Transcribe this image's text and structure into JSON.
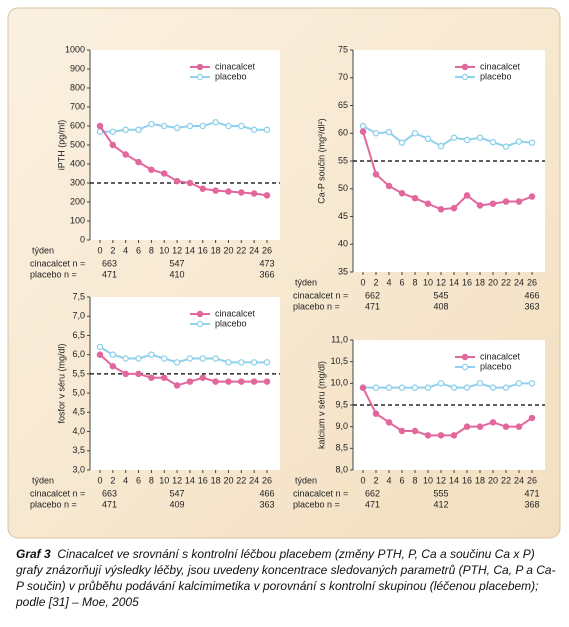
{
  "chart_data": [
    {
      "type": "line",
      "y_label": "iPTH (pg/ml)",
      "x_label": "týden",
      "categories": [
        0,
        2,
        4,
        6,
        8,
        10,
        12,
        14,
        16,
        18,
        20,
        22,
        24,
        26
      ],
      "series": [
        {
          "name": "cinacalcet",
          "color": "#e2679d",
          "values": [
            600,
            500,
            450,
            410,
            370,
            350,
            310,
            300,
            270,
            260,
            255,
            250,
            245,
            235
          ]
        },
        {
          "name": "placebo",
          "color": "#8fd0ea",
          "values": [
            570,
            570,
            580,
            580,
            610,
            600,
            590,
            600,
            600,
            620,
            600,
            600,
            580,
            580
          ]
        }
      ],
      "ylim": [
        0,
        1000
      ],
      "yticks": [
        0,
        100,
        200,
        300,
        400,
        500,
        600,
        700,
        800,
        900,
        1000
      ],
      "reference_line": 300,
      "legend": "top right",
      "n_table": [
        {
          "label": "cinacalcet n =",
          "counts": [
            663,
            547,
            473
          ]
        },
        {
          "label": "placebo n =",
          "counts": [
            471,
            410,
            366
          ]
        }
      ]
    },
    {
      "type": "line",
      "y_label": "Ca-P součin (mg²/dl²)",
      "x_label": "týden",
      "categories": [
        0,
        2,
        4,
        6,
        8,
        10,
        12,
        14,
        16,
        18,
        20,
        22,
        24,
        26
      ],
      "series": [
        {
          "name": "cinacalcet",
          "color": "#e2679d",
          "values": [
            60.3,
            52.6,
            50.5,
            49.2,
            48.3,
            47.3,
            46.3,
            46.5,
            48.8,
            47.0,
            47.3,
            47.7,
            47.7,
            48.6
          ]
        },
        {
          "name": "placebo",
          "color": "#8fd0ea",
          "values": [
            61.3,
            60.0,
            60.2,
            58.3,
            60.0,
            59.0,
            57.7,
            59.2,
            58.8,
            59.2,
            58.4,
            57.6,
            58.5,
            58.3
          ]
        }
      ],
      "ylim": [
        35,
        75
      ],
      "yticks": [
        35,
        40,
        45,
        50,
        55,
        60,
        65,
        70,
        75
      ],
      "reference_line": 55,
      "legend": "top right",
      "n_table": [
        {
          "label": "cinacalcet n =",
          "counts": [
            662,
            545,
            466
          ]
        },
        {
          "label": "placebo n =",
          "counts": [
            471,
            408,
            363
          ]
        }
      ]
    },
    {
      "type": "line",
      "y_label": "fosfor v séru (mg/dl)",
      "x_label": "týden",
      "categories": [
        0,
        2,
        4,
        6,
        8,
        10,
        12,
        14,
        16,
        18,
        20,
        22,
        24,
        26
      ],
      "series": [
        {
          "name": "cinacalcet",
          "color": "#e2679d",
          "values": [
            6.0,
            5.7,
            5.5,
            5.5,
            5.4,
            5.4,
            5.2,
            5.3,
            5.4,
            5.3,
            5.3,
            5.3,
            5.3,
            5.3
          ]
        },
        {
          "name": "placebo",
          "color": "#8fd0ea",
          "values": [
            6.2,
            6.0,
            5.9,
            5.9,
            6.0,
            5.9,
            5.8,
            5.9,
            5.9,
            5.9,
            5.8,
            5.8,
            5.8,
            5.8
          ]
        }
      ],
      "ylim": [
        3.0,
        7.5
      ],
      "yticks": [
        {
          "value": 3.0,
          "label": "3,0"
        },
        {
          "value": 3.5,
          "label": "3,5"
        },
        {
          "value": 4.0,
          "label": "4,0"
        },
        {
          "value": 4.5,
          "label": "4,5"
        },
        {
          "value": 5.0,
          "label": "5,0"
        },
        {
          "value": 5.5,
          "label": "5,5"
        },
        {
          "value": 6.0,
          "label": "6,0"
        },
        {
          "value": 6.5,
          "label": "6,5"
        },
        {
          "value": 7.0,
          "label": "7,0"
        },
        {
          "value": 7.5,
          "label": "7,5"
        }
      ],
      "reference_line": 5.5,
      "legend": "top right",
      "n_table": [
        {
          "label": "cinacalcet n =",
          "counts": [
            663,
            547,
            466
          ]
        },
        {
          "label": "placebo n =",
          "counts": [
            471,
            409,
            363
          ]
        }
      ]
    },
    {
      "type": "line",
      "y_label": "kalcium v séru (mg/dl)",
      "x_label": "týden",
      "categories": [
        0,
        2,
        4,
        6,
        8,
        10,
        12,
        14,
        16,
        18,
        20,
        22,
        24,
        26
      ],
      "series": [
        {
          "name": "cinacalcet",
          "color": "#e2679d",
          "values": [
            9.9,
            9.3,
            9.1,
            8.9,
            8.9,
            8.8,
            8.8,
            8.8,
            9.0,
            9.0,
            9.1,
            9.0,
            9.0,
            9.2
          ]
        },
        {
          "name": "placebo",
          "color": "#8fd0ea",
          "values": [
            9.9,
            9.9,
            9.9,
            9.9,
            9.9,
            9.9,
            10.0,
            9.9,
            9.9,
            10.0,
            9.9,
            9.9,
            10.0,
            10.0
          ]
        }
      ],
      "ylim": [
        8.0,
        11.0
      ],
      "yticks": [
        {
          "value": 8.0,
          "label": "8,0"
        },
        {
          "value": 8.5,
          "label": "8,5"
        },
        {
          "value": 9.0,
          "label": "9,0"
        },
        {
          "value": 9.5,
          "label": "9,5"
        },
        {
          "value": 10.0,
          "label": "10,0"
        },
        {
          "value": 10.5,
          "label": "10,5"
        },
        {
          "value": 11.0,
          "label": "11,0"
        }
      ],
      "reference_line": 9.5,
      "legend": "top right",
      "n_table": [
        {
          "label": "cinacalcet n =",
          "counts": [
            662,
            555,
            471
          ]
        },
        {
          "label": "placebo n =",
          "counts": [
            471,
            412,
            368
          ]
        }
      ]
    }
  ],
  "caption": {
    "label": "Graf 3",
    "text": "Cinacalcet ve srovnání s kontrolní léčbou placebem (změny PTH, P, Ca a součinu Ca x P) grafy znázorňují výsledky léčby, jsou uvedeny koncentrace sledovaných parametrů (PTH, Ca, P a Ca-P součin) v průběhu podávání kalcimimetika v porovnání s kontrolní skupinou (léčenou placebem); podle [31] – Moe, 2005"
  }
}
